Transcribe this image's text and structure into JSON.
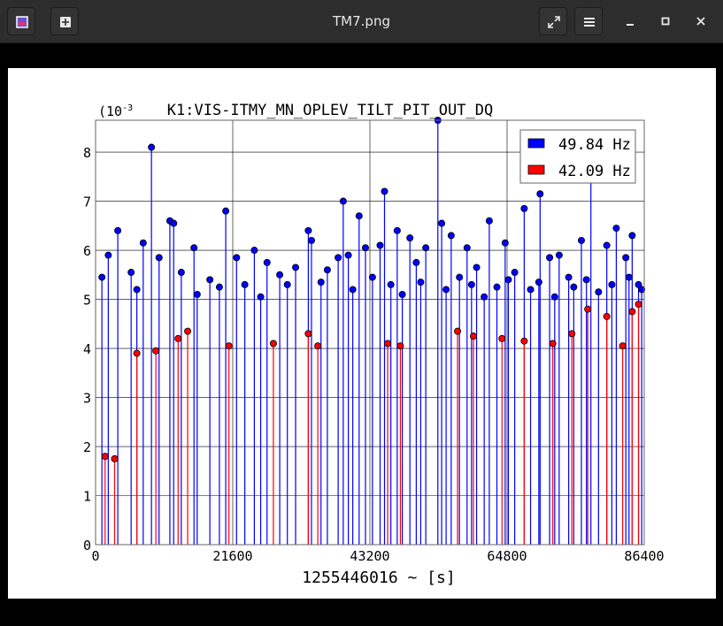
{
  "window": {
    "title": "TM7.png",
    "icons": {
      "app": "image-viewer-icon",
      "new": "new-tab-icon",
      "fullscreen": "fullscreen-icon",
      "menu": "hamburger-menu-icon",
      "minimize": "minimize-icon",
      "maximize": "maximize-icon",
      "close": "close-icon"
    }
  },
  "chart_data": {
    "type": "scatter",
    "title": "K1:VIS-ITMY_MN_OPLEV_TILT_PIT_OUT_DQ",
    "xlabel": "1255446016 ~ [s]",
    "ylabel": "",
    "y_multiplier": "(10",
    "y_multiplier_exp": "-3",
    "xlim": [
      0,
      86400
    ],
    "ylim": [
      0,
      8.65
    ],
    "xticks": [
      "0",
      "21600",
      "43200",
      "64800",
      "86400"
    ],
    "yticks": [
      "0",
      "1",
      "2",
      "3",
      "4",
      "5",
      "6",
      "7",
      "8"
    ],
    "grid": true,
    "legend_position": "top-right",
    "series": [
      {
        "name": "49.84 Hz",
        "color": "#0000ff",
        "style": "stem",
        "points": [
          [
            8800,
            8.1
          ],
          [
            20500,
            6.8
          ],
          [
            39000,
            7.0
          ],
          [
            41500,
            6.7
          ],
          [
            45500,
            7.2
          ],
          [
            53900,
            8.65
          ],
          [
            54500,
            6.55
          ],
          [
            67500,
            6.85
          ],
          [
            70000,
            7.15
          ],
          [
            78000,
            7.6
          ],
          [
            82000,
            6.45
          ],
          [
            84500,
            6.3
          ],
          [
            3500,
            6.4
          ],
          [
            7500,
            6.15
          ],
          [
            11700,
            6.6
          ],
          [
            12300,
            6.55
          ],
          [
            15500,
            6.05
          ],
          [
            22200,
            5.85
          ],
          [
            25000,
            6.0
          ],
          [
            33500,
            6.4
          ],
          [
            34000,
            6.2
          ],
          [
            39800,
            5.9
          ],
          [
            42500,
            6.05
          ],
          [
            44800,
            6.1
          ],
          [
            47500,
            6.4
          ],
          [
            49500,
            6.25
          ],
          [
            52000,
            6.05
          ],
          [
            56000,
            6.3
          ],
          [
            58500,
            6.05
          ],
          [
            62000,
            6.6
          ],
          [
            64500,
            6.15
          ],
          [
            73000,
            5.9
          ],
          [
            76500,
            6.2
          ],
          [
            80500,
            6.1
          ],
          [
            83500,
            5.85
          ],
          [
            2000,
            5.9
          ],
          [
            5600,
            5.55
          ],
          [
            10000,
            5.85
          ],
          [
            13500,
            5.55
          ],
          [
            18000,
            5.4
          ],
          [
            27000,
            5.75
          ],
          [
            29000,
            5.5
          ],
          [
            31500,
            5.65
          ],
          [
            36500,
            5.6
          ],
          [
            38200,
            5.85
          ],
          [
            50500,
            5.75
          ],
          [
            60000,
            5.65
          ],
          [
            66000,
            5.55
          ],
          [
            71500,
            5.85
          ],
          [
            74500,
            5.45
          ],
          [
            85500,
            5.3
          ],
          [
            1000,
            5.45
          ],
          [
            6500,
            5.2
          ],
          [
            16000,
            5.1
          ],
          [
            19500,
            5.25
          ],
          [
            23500,
            5.3
          ],
          [
            26000,
            5.05
          ],
          [
            30200,
            5.3
          ],
          [
            35500,
            5.35
          ],
          [
            40500,
            5.2
          ],
          [
            43600,
            5.45
          ],
          [
            46500,
            5.3
          ],
          [
            48300,
            5.1
          ],
          [
            51200,
            5.35
          ],
          [
            55200,
            5.2
          ],
          [
            57300,
            5.45
          ],
          [
            59200,
            5.3
          ],
          [
            61200,
            5.05
          ],
          [
            63200,
            5.25
          ],
          [
            65000,
            5.4
          ],
          [
            68500,
            5.2
          ],
          [
            69800,
            5.35
          ],
          [
            72300,
            5.05
          ],
          [
            75300,
            5.25
          ],
          [
            77300,
            5.4
          ],
          [
            79200,
            5.15
          ],
          [
            81300,
            5.3
          ],
          [
            84000,
            5.45
          ],
          [
            86000,
            5.2
          ]
        ]
      },
      {
        "name": "42.09 Hz",
        "color": "#ff0000",
        "style": "stem",
        "points": [
          [
            3000,
            1.75
          ],
          [
            1500,
            1.8
          ],
          [
            13000,
            4.2
          ],
          [
            14500,
            4.35
          ],
          [
            57000,
            4.35
          ],
          [
            59500,
            4.25
          ],
          [
            77500,
            4.8
          ],
          [
            80500,
            4.65
          ],
          [
            84500,
            4.75
          ],
          [
            85500,
            4.9
          ],
          [
            6500,
            3.9
          ],
          [
            9500,
            3.95
          ],
          [
            21000,
            4.05
          ],
          [
            28000,
            4.1
          ],
          [
            33500,
            4.3
          ],
          [
            35000,
            4.05
          ],
          [
            46000,
            4.1
          ],
          [
            48000,
            4.05
          ],
          [
            64000,
            4.2
          ],
          [
            67500,
            4.15
          ],
          [
            72000,
            4.1
          ],
          [
            75000,
            4.3
          ],
          [
            83000,
            4.05
          ]
        ]
      }
    ]
  }
}
